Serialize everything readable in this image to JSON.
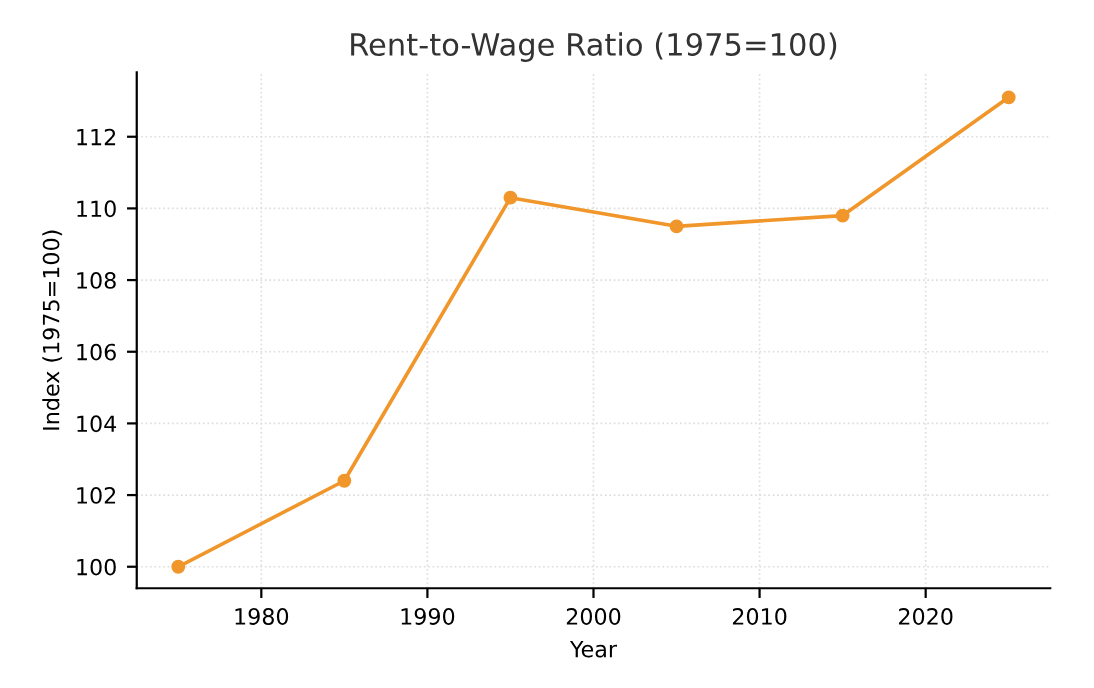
{
  "chart_data": {
    "type": "line",
    "title": "Rent-to-Wage Ratio (1975=100)",
    "xlabel": "Year",
    "ylabel": "Index (1975=100)",
    "x": [
      1975,
      1985,
      1995,
      2005,
      2015,
      2025
    ],
    "series": [
      {
        "color": "#f0962a",
        "values": [
          100,
          102.4,
          110.3,
          109.5,
          109.8,
          113.1
        ]
      }
    ],
    "xlim": [
      1972.5,
      2027.5
    ],
    "ylim": [
      99.4,
      113.8
    ],
    "xticks": [
      1980,
      1990,
      2000,
      2010,
      2020
    ],
    "yticks": [
      100,
      102,
      104,
      106,
      108,
      110,
      112
    ],
    "grid": true,
    "marker": "circle",
    "line_style": "solid"
  }
}
